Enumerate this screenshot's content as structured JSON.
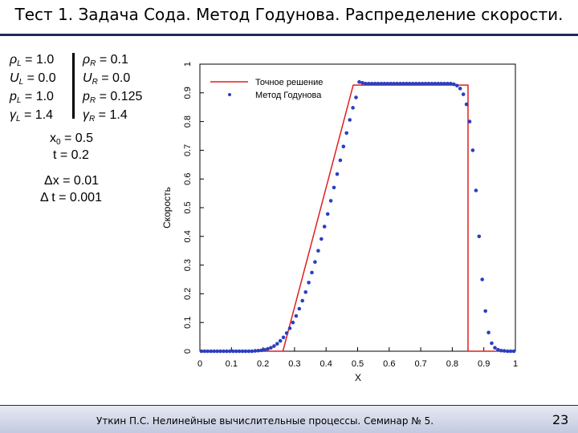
{
  "title": "Тест 1. Задача Сода. Метод Годунова. Распределение скорости.",
  "params_left": [
    {
      "sym": "ρ",
      "sub": "L",
      "val": " = 1.0"
    },
    {
      "sym": "U",
      "sub": "L",
      "val": " = 0.0"
    },
    {
      "sym": "p",
      "sub": "L",
      "val": " = 1.0"
    },
    {
      "sym": "γ",
      "sub": "L",
      "val": " = 1.4"
    }
  ],
  "params_right": [
    {
      "sym": "ρ",
      "sub": "R",
      "val": " = 0.1"
    },
    {
      "sym": "U",
      "sub": "R",
      "val": " = 0.0"
    },
    {
      "sym": "p",
      "sub": "R",
      "val": " = 0.125"
    },
    {
      "sym": "γ",
      "sub": "R",
      "val": " = 1.4"
    }
  ],
  "x0_label": "x",
  "x0_sub": "0",
  "x0_val": " = 0.5",
  "t_text": "t = 0.2",
  "dx_text": "Δx = 0.01",
  "dt_text": "Δ t = 0.001",
  "footer": "Уткин П.С. Нелинейные вычислительные процессы. Семинар № 5.",
  "page_number": "23",
  "colors": {
    "exact": "#e01e1e",
    "numeric": "#2b3fbf",
    "rule": "#1f2a5c"
  },
  "chart_data": {
    "type": "line",
    "xlabel": "X",
    "ylabel": "Скорость",
    "xlim": [
      0,
      1
    ],
    "ylim": [
      0,
      1
    ],
    "xticks": [
      "0",
      "0.1",
      "0.2",
      "0.3",
      "0.4",
      "0.5",
      "0.6",
      "0.7",
      "0.8",
      "0.9",
      "1"
    ],
    "yticks": [
      "0",
      "0.1",
      "0.2",
      "0.3",
      "0.4",
      "0.5",
      "0.6",
      "0.7",
      "0.8",
      "0.9",
      "1"
    ],
    "legend_position": "top-left",
    "series": [
      {
        "name": "Точное решение",
        "style": "line",
        "x": [
          0,
          0.263,
          0.486,
          0.85,
          0.85,
          1
        ],
        "y": [
          0,
          0,
          0.927,
          0.927,
          0,
          0
        ]
      },
      {
        "name": "Метод Годунова",
        "style": "points",
        "x": [
          0.005,
          0.015,
          0.025,
          0.035,
          0.045,
          0.055,
          0.065,
          0.075,
          0.085,
          0.095,
          0.105,
          0.115,
          0.125,
          0.135,
          0.145,
          0.155,
          0.165,
          0.175,
          0.185,
          0.195,
          0.205,
          0.215,
          0.225,
          0.235,
          0.245,
          0.255,
          0.265,
          0.275,
          0.285,
          0.295,
          0.305,
          0.315,
          0.325,
          0.335,
          0.345,
          0.355,
          0.365,
          0.375,
          0.385,
          0.395,
          0.405,
          0.415,
          0.425,
          0.435,
          0.445,
          0.455,
          0.465,
          0.475,
          0.485,
          0.495,
          0.505,
          0.515,
          0.525,
          0.535,
          0.545,
          0.555,
          0.565,
          0.575,
          0.585,
          0.595,
          0.605,
          0.615,
          0.625,
          0.635,
          0.645,
          0.655,
          0.665,
          0.675,
          0.685,
          0.695,
          0.705,
          0.715,
          0.725,
          0.735,
          0.745,
          0.755,
          0.765,
          0.775,
          0.785,
          0.795,
          0.805,
          0.815,
          0.825,
          0.835,
          0.845,
          0.855,
          0.865,
          0.875,
          0.885,
          0.895,
          0.905,
          0.915,
          0.925,
          0.935,
          0.945,
          0.955,
          0.965,
          0.975,
          0.985,
          0.995
        ],
        "y": [
          0,
          0,
          0,
          0,
          0,
          0,
          0,
          0,
          0,
          0,
          0,
          0,
          0,
          0,
          0,
          0,
          0,
          0.001,
          0.002,
          0.003,
          0.005,
          0.008,
          0.012,
          0.018,
          0.026,
          0.036,
          0.048,
          0.063,
          0.08,
          0.1,
          0.123,
          0.148,
          0.176,
          0.206,
          0.239,
          0.274,
          0.311,
          0.35,
          0.391,
          0.434,
          0.478,
          0.524,
          0.57,
          0.617,
          0.665,
          0.713,
          0.76,
          0.806,
          0.848,
          0.884,
          0.938,
          0.935,
          0.932,
          0.932,
          0.932,
          0.932,
          0.932,
          0.932,
          0.932,
          0.932,
          0.932,
          0.932,
          0.932,
          0.932,
          0.932,
          0.932,
          0.932,
          0.932,
          0.932,
          0.932,
          0.932,
          0.932,
          0.932,
          0.932,
          0.932,
          0.932,
          0.932,
          0.932,
          0.932,
          0.932,
          0.93,
          0.925,
          0.915,
          0.895,
          0.86,
          0.8,
          0.7,
          0.56,
          0.4,
          0.25,
          0.14,
          0.065,
          0.028,
          0.012,
          0.005,
          0.002,
          0.001,
          0,
          0,
          0
        ]
      }
    ]
  }
}
